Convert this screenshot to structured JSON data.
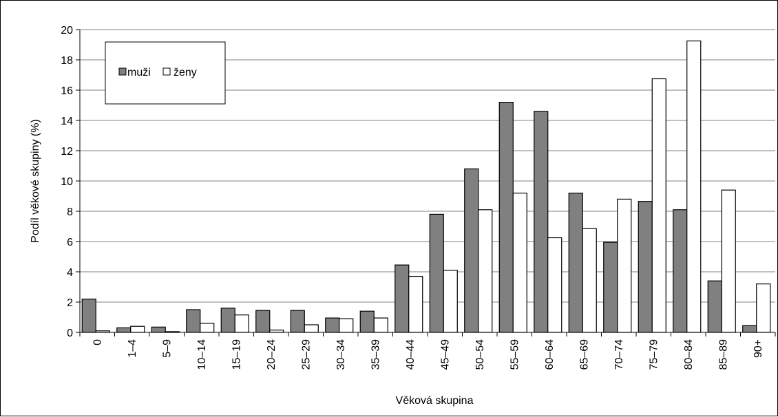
{
  "chart_data": {
    "type": "bar",
    "xlabel": "Věková skupina",
    "ylabel": "Podíl věkové skupiny (%)",
    "ylim": [
      0,
      20
    ],
    "yticks": [
      0,
      2,
      4,
      6,
      8,
      10,
      12,
      14,
      16,
      18,
      20
    ],
    "grid": true,
    "legend_position": "top-left",
    "categories": [
      "0",
      "1–4",
      "5–9",
      "10–14",
      "15–19",
      "20–24",
      "25–29",
      "30–34",
      "35–39",
      "40–44",
      "45–49",
      "50–54",
      "55–59",
      "60–64",
      "65–69",
      "70–74",
      "75–79",
      "80–84",
      "85–89",
      "90+"
    ],
    "series": [
      {
        "name": "muži",
        "color": "#808080",
        "values": [
          2.2,
          0.3,
          0.35,
          1.5,
          1.6,
          1.45,
          1.45,
          0.95,
          1.4,
          4.45,
          7.8,
          10.8,
          15.2,
          14.6,
          9.2,
          5.95,
          8.65,
          8.1,
          3.4,
          0.45
        ]
      },
      {
        "name": "ženy",
        "color": "#ffffff",
        "values": [
          0.1,
          0.4,
          0.05,
          0.6,
          1.15,
          0.15,
          0.5,
          0.9,
          0.95,
          3.7,
          4.1,
          8.1,
          9.2,
          6.25,
          6.85,
          8.8,
          16.75,
          19.25,
          9.4,
          3.2
        ]
      }
    ]
  }
}
